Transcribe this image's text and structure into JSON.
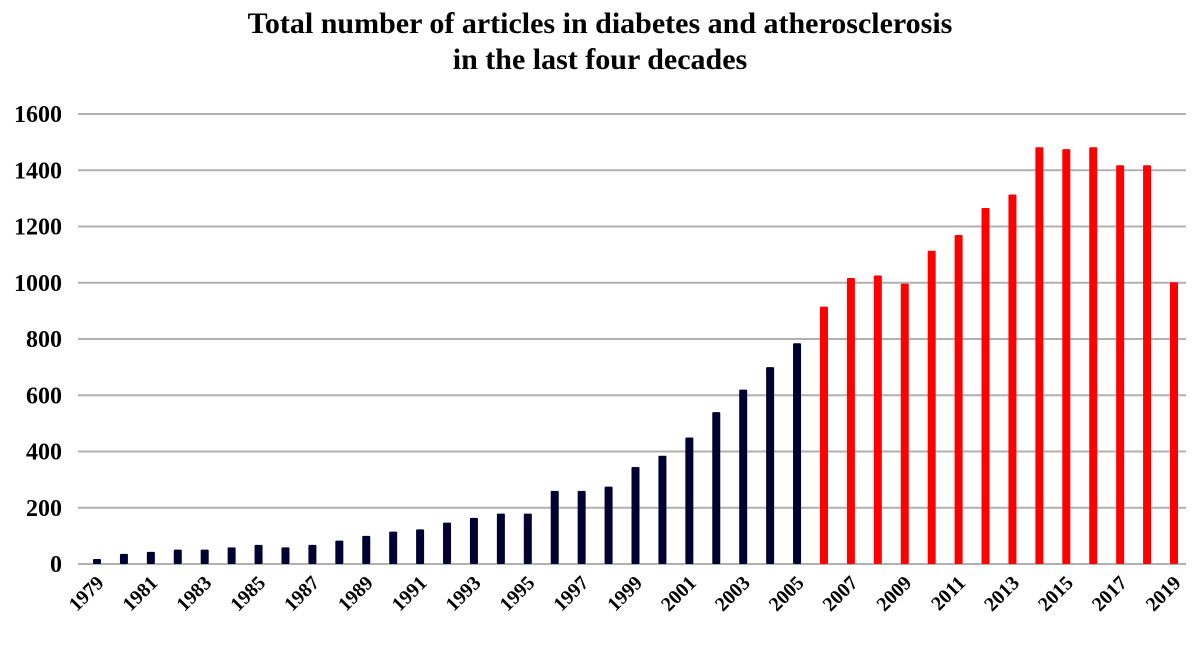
{
  "chart_data": {
    "type": "bar",
    "title_line1": "Total number of articles in diabetes and atherosclerosis",
    "title_line2": "in the last four decades",
    "xlabel": "",
    "ylabel": "",
    "ylim": [
      0,
      1600
    ],
    "yticks": [
      0,
      200,
      400,
      600,
      800,
      1000,
      1200,
      1400,
      1600
    ],
    "grid": true,
    "categories": [
      "1979",
      "1980",
      "1981",
      "1982",
      "1983",
      "1984",
      "1985",
      "1986",
      "1987",
      "1988",
      "1989",
      "1990",
      "1991",
      "1992",
      "1993",
      "1994",
      "1995",
      "1996",
      "1997",
      "1998",
      "1999",
      "2000",
      "2001",
      "2002",
      "2003",
      "2004",
      "2005",
      "2006",
      "2007",
      "2008",
      "2009",
      "2010",
      "2011",
      "2012",
      "2013",
      "2014",
      "2015",
      "2016",
      "2017",
      "2018",
      "2019"
    ],
    "values": [
      18,
      36,
      43,
      51,
      51,
      59,
      68,
      59,
      68,
      83,
      100,
      115,
      123,
      147,
      164,
      179,
      179,
      260,
      260,
      275,
      345,
      385,
      450,
      540,
      620,
      700,
      785,
      915,
      1017,
      1026,
      997,
      1114,
      1170,
      1266,
      1314,
      1482,
      1475,
      1482,
      1418,
      1418,
      1002
    ],
    "colors": {
      "before_2006": "#000033",
      "from_2006": "#ff0000",
      "grid": "#b0b0b0"
    },
    "color_split_year": "2006"
  }
}
